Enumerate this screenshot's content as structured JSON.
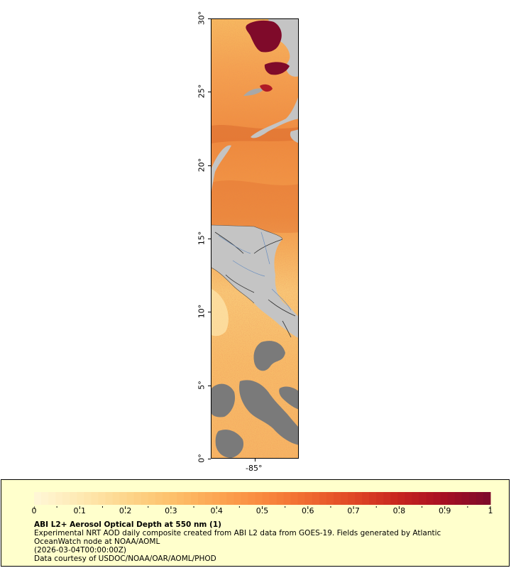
{
  "map": {
    "lat_ticks": [
      {
        "value": 30,
        "label": "30°"
      },
      {
        "value": 25,
        "label": "25°"
      },
      {
        "value": 20,
        "label": "20°"
      },
      {
        "value": 15,
        "label": "15°"
      },
      {
        "value": 10,
        "label": "10°"
      },
      {
        "value": 5,
        "label": "5°"
      },
      {
        "value": 0,
        "label": "0°"
      }
    ],
    "lon_tick": {
      "value": -85,
      "label": "-85°"
    },
    "colors": {
      "land": "#c4c4c4",
      "no_data": "#7a7a7a",
      "high_aod": "#7f0a2a",
      "borders": "#303030",
      "rivers": "#6a8fc0"
    }
  },
  "legend": {
    "ticks": [
      "0",
      "0.1",
      "0.2",
      "0.3",
      "0.4",
      "0.5",
      "0.6",
      "0.7",
      "0.8",
      "0.9",
      "1"
    ],
    "range": [
      0,
      1
    ],
    "colors": [
      "#fff6d5",
      "#fee8b0",
      "#fdd58a",
      "#fdc06a",
      "#fca552",
      "#f98a3e",
      "#f06a30",
      "#e04826",
      "#c8261f",
      "#a80f22",
      "#7f0a2a"
    ],
    "background": "#ffffcc",
    "title": "ABI L2+ Aerosol Optical Depth at 550 nm (1)",
    "line1": "Experimental NRT AOD daily composite created from ABI L2 data from GOES-19. Fields generated by Atlantic",
    "line2": "OceanWatch node at NOAA/AOML",
    "line3": "(2026-03-04T00:00:00Z)",
    "line4": "Data courtesy of USDOC/NOAA/OAR/AOML/PHOD"
  }
}
